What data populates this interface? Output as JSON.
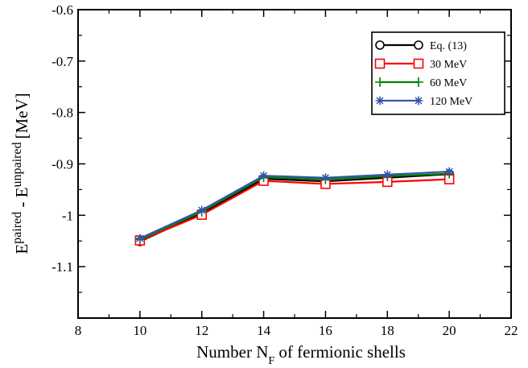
{
  "chart_data": {
    "type": "line",
    "title": "",
    "xlabel": "Number  N_F of fermionic shells",
    "xlabel_parts": {
      "pre": "Number  N",
      "sub": "F",
      "post": " of fermionic shells"
    },
    "ylabel": "E^paired - E^unpaired [MeV]",
    "ylabel_parts": {
      "e1": "E",
      "sup1": "paired",
      "mid": " - E",
      "sup2": "unpaired",
      "unit": "[MeV]"
    },
    "xlim": [
      8,
      22
    ],
    "ylim": [
      -1.2,
      -0.6
    ],
    "x_ticks": [
      8,
      10,
      12,
      14,
      16,
      18,
      20,
      22
    ],
    "x_tick_labels": [
      "8",
      "10",
      "12",
      "14",
      "16",
      "18",
      "20",
      "22"
    ],
    "y_ticks": [
      -0.6,
      -0.7,
      -0.8,
      -0.9,
      -1.0,
      -1.1
    ],
    "y_tick_labels": [
      "-0.6",
      "-0.7",
      "-0.8",
      "-0.9",
      "-1",
      "-1.1"
    ],
    "grid": false,
    "legend_position": "top-right",
    "x": [
      10,
      12,
      14,
      16,
      18,
      20
    ],
    "series": [
      {
        "name": "Eq. (13)",
        "values": [
          -1.051,
          -0.996,
          -0.929,
          -0.934,
          -0.927,
          -0.92
        ],
        "color": "#000000",
        "marker": "circle"
      },
      {
        "name": "30 MeV",
        "values": [
          -1.049,
          -0.999,
          -0.933,
          -0.939,
          -0.935,
          -0.93
        ],
        "color": "#ff0000",
        "marker": "square"
      },
      {
        "name": "60 MeV",
        "values": [
          -1.047,
          -0.993,
          -0.926,
          -0.93,
          -0.924,
          -0.919
        ],
        "color": "#008000",
        "marker": "plus"
      },
      {
        "name": "120 MeV",
        "values": [
          -1.045,
          -0.99,
          -0.923,
          -0.927,
          -0.921,
          -0.915
        ],
        "color": "#3355aa",
        "marker": "asterisk"
      }
    ]
  }
}
